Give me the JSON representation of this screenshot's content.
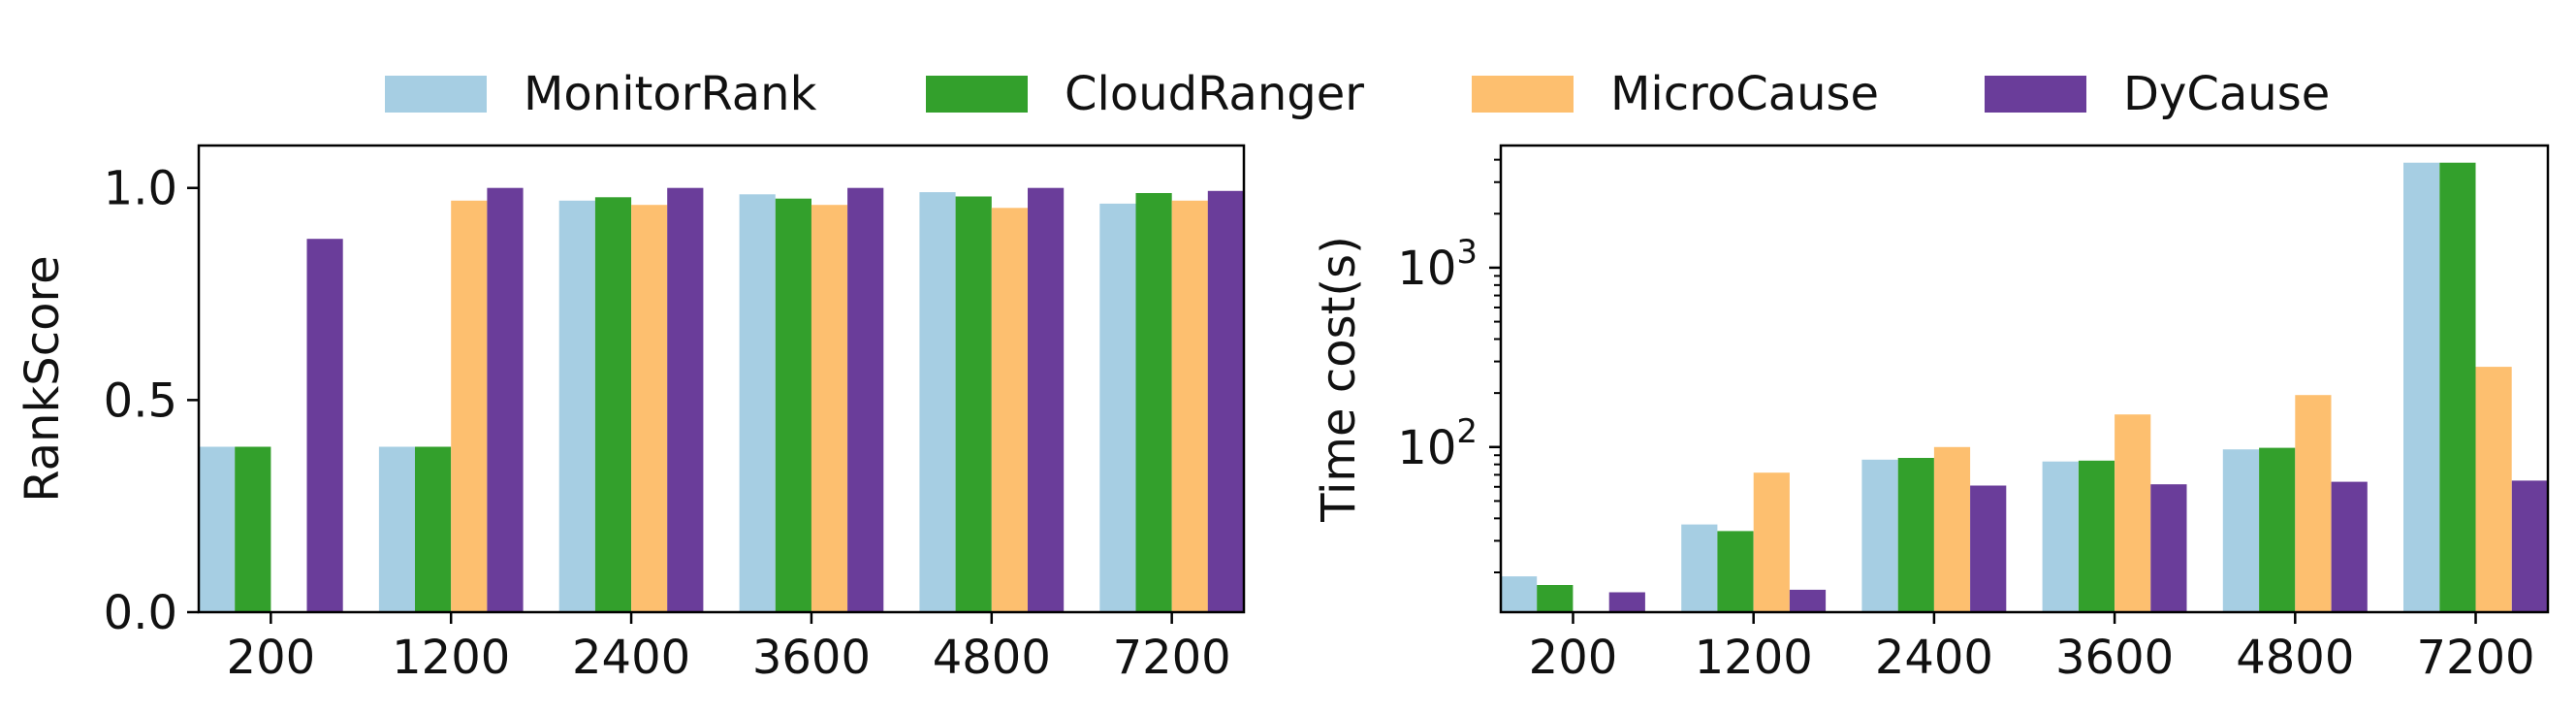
{
  "legend": {
    "entries": [
      {
        "name": "MonitorRank",
        "color": "#a6cee3"
      },
      {
        "name": "CloudRanger",
        "color": "#33a02c"
      },
      {
        "name": "MicroCause",
        "color": "#fdbf6f"
      },
      {
        "name": "DyCause",
        "color": "#6a3d9a"
      }
    ]
  },
  "chart_data": [
    {
      "type": "bar",
      "ylabel": "RankScore",
      "ylim": [
        0,
        1.1
      ],
      "yticks": [
        "0.0",
        "0.5",
        "1.0"
      ],
      "categories": [
        "200",
        "1200",
        "2400",
        "3600",
        "4800",
        "7200"
      ],
      "grid": false,
      "series": [
        {
          "name": "MonitorRank",
          "color": "#a6cee3",
          "values": [
            0.39,
            0.39,
            0.97,
            0.985,
            0.99,
            0.963
          ]
        },
        {
          "name": "CloudRanger",
          "color": "#33a02c",
          "values": [
            0.39,
            0.39,
            0.978,
            0.975,
            0.98,
            0.988
          ]
        },
        {
          "name": "MicroCause",
          "color": "#fdbf6f",
          "values": [
            0,
            0.97,
            0.96,
            0.96,
            0.953,
            0.97
          ]
        },
        {
          "name": "DyCause",
          "color": "#6a3d9a",
          "values": [
            0.88,
            1.0,
            1.0,
            1.0,
            1.0,
            0.993
          ]
        }
      ]
    },
    {
      "type": "bar",
      "ylabel": "Time cost(s)",
      "yscale": "log",
      "ylim": [
        12,
        4800
      ],
      "yticks": [
        {
          "value": 100,
          "base": "10",
          "exp": "2"
        },
        {
          "value": 1000,
          "base": "10",
          "exp": "3"
        }
      ],
      "categories": [
        "200",
        "1200",
        "2400",
        "3600",
        "4800",
        "7200"
      ],
      "grid": false,
      "series": [
        {
          "name": "MonitorRank",
          "color": "#a6cee3",
          "values": [
            19,
            37,
            85,
            83,
            97,
            3850
          ]
        },
        {
          "name": "CloudRanger",
          "color": "#33a02c",
          "values": [
            17,
            34,
            87,
            84,
            99,
            3850
          ]
        },
        {
          "name": "MicroCause",
          "color": "#fdbf6f",
          "values": [
            12,
            72,
            100,
            152,
            195,
            280
          ]
        },
        {
          "name": "DyCause",
          "color": "#6a3d9a",
          "values": [
            15.5,
            16,
            61,
            62,
            64,
            65
          ]
        }
      ]
    }
  ]
}
